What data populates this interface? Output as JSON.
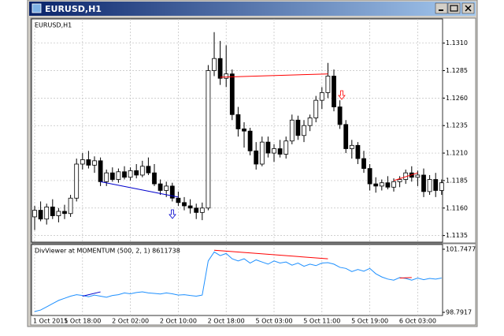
{
  "window": {
    "title": "EURUSD,H1"
  },
  "chart_data": [
    {
      "type": "candlestick",
      "title": "EURUSD,H1",
      "open": [
        1.1152,
        1.1158,
        1.115,
        1.1161,
        1.1153,
        1.1157,
        1.1155,
        1.1169,
        1.12,
        1.1204,
        1.1199,
        1.1203,
        1.1184,
        1.1192,
        1.1186,
        1.1193,
        1.1188,
        1.1194,
        1.119,
        1.1198,
        1.1192,
        1.1182,
        1.1176,
        1.118,
        1.1169,
        1.1165,
        1.1162,
        1.116,
        1.1156,
        1.116,
        1.1285,
        1.1296,
        1.1278,
        1.1282,
        1.1245,
        1.1232,
        1.123,
        1.1212,
        1.12,
        1.122,
        1.121,
        1.1214,
        1.1209,
        1.1221,
        1.124,
        1.1226,
        1.1235,
        1.1242,
        1.1258,
        1.1265,
        1.128,
        1.1252,
        1.1236,
        1.1214,
        1.1217,
        1.1205,
        1.1196,
        1.1182,
        1.118,
        1.1183,
        1.1179,
        1.1184,
        1.1186,
        1.1192,
        1.1188,
        1.119,
        1.1175,
        1.1186,
        1.1176
      ],
      "high": [
        1.1162,
        1.1166,
        1.1164,
        1.1168,
        1.116,
        1.1163,
        1.1172,
        1.1205,
        1.121,
        1.1212,
        1.1207,
        1.1206,
        1.1195,
        1.1197,
        1.1196,
        1.1198,
        1.1197,
        1.12,
        1.1203,
        1.1206,
        1.12,
        1.1186,
        1.1184,
        1.1183,
        1.1175,
        1.117,
        1.1168,
        1.1164,
        1.1165,
        1.129,
        1.132,
        1.1312,
        1.1308,
        1.1286,
        1.1252,
        1.1238,
        1.1233,
        1.122,
        1.1225,
        1.1225,
        1.1218,
        1.1222,
        1.1225,
        1.1245,
        1.1244,
        1.124,
        1.1245,
        1.1262,
        1.127,
        1.1292,
        1.1286,
        1.1258,
        1.124,
        1.1222,
        1.122,
        1.1212,
        1.12,
        1.1188,
        1.1186,
        1.1189,
        1.1187,
        1.1189,
        1.1195,
        1.1198,
        1.1194,
        1.1196,
        1.119,
        1.1192,
        1.1186
      ],
      "low": [
        1.114,
        1.1148,
        1.1145,
        1.115,
        1.1147,
        1.115,
        1.1152,
        1.1166,
        1.1195,
        1.1196,
        1.1192,
        1.118,
        1.118,
        1.1184,
        1.1183,
        1.1186,
        1.1185,
        1.1187,
        1.1188,
        1.119,
        1.118,
        1.1172,
        1.117,
        1.1166,
        1.1162,
        1.1158,
        1.1155,
        1.115,
        1.1149,
        1.1158,
        1.128,
        1.1272,
        1.127,
        1.124,
        1.1225,
        1.1215,
        1.1208,
        1.1195,
        1.1198,
        1.1206,
        1.1202,
        1.1206,
        1.1205,
        1.1218,
        1.1222,
        1.122,
        1.123,
        1.1238,
        1.125,
        1.126,
        1.1248,
        1.1232,
        1.121,
        1.1205,
        1.12,
        1.1192,
        1.1176,
        1.1174,
        1.1176,
        1.1177,
        1.1175,
        1.1179,
        1.1182,
        1.1184,
        1.118,
        1.117,
        1.1172,
        1.117,
        1.1172
      ],
      "close": [
        1.1158,
        1.115,
        1.1161,
        1.1153,
        1.1157,
        1.1155,
        1.1169,
        1.12,
        1.1204,
        1.1199,
        1.1203,
        1.1184,
        1.1192,
        1.1186,
        1.1193,
        1.1188,
        1.1194,
        1.119,
        1.1198,
        1.1192,
        1.1182,
        1.1176,
        1.118,
        1.1169,
        1.1165,
        1.1162,
        1.116,
        1.1156,
        1.116,
        1.1285,
        1.1296,
        1.1278,
        1.1282,
        1.1245,
        1.1232,
        1.123,
        1.1212,
        1.12,
        1.122,
        1.121,
        1.1214,
        1.1209,
        1.1221,
        1.124,
        1.1226,
        1.1235,
        1.1242,
        1.1258,
        1.1265,
        1.128,
        1.1252,
        1.1236,
        1.1214,
        1.1217,
        1.1205,
        1.1196,
        1.1182,
        1.118,
        1.1183,
        1.1179,
        1.1184,
        1.1186,
        1.1192,
        1.1188,
        1.119,
        1.1175,
        1.1186,
        1.1176,
        1.1183
      ],
      "up_color": "#ffffff",
      "down_color": "#000000",
      "ylim": [
        1.1129,
        1.1332
      ],
      "yticks": [
        {
          "value": 1.1135,
          "label": "1.1135"
        },
        {
          "value": 1.116,
          "label": "1.1160"
        },
        {
          "value": 1.1185,
          "label": "1.1185"
        },
        {
          "value": 1.121,
          "label": "1.1210"
        },
        {
          "value": 1.1235,
          "label": "1.1235"
        },
        {
          "value": 1.126,
          "label": "1.1260"
        },
        {
          "value": 1.1285,
          "label": "1.1285"
        },
        {
          "value": 1.131,
          "label": "1.1310"
        }
      ],
      "grid": true,
      "trendlines": [
        {
          "color": "#ff0000",
          "x": [
            31,
            49
          ],
          "y": [
            1.1279,
            1.1282
          ]
        },
        {
          "color": "#0000cd",
          "x": [
            11,
            24
          ],
          "y": [
            1.1184,
            1.117
          ]
        },
        {
          "color": "#ff0000",
          "x": [
            60,
            64
          ],
          "y": [
            1.1185,
            1.1192
          ]
        }
      ]
    },
    {
      "type": "line",
      "title": "DivViewer at MOMENTUM (500, 2, 1) 8611738",
      "categories": [
        "1 Oct 2015",
        null,
        null,
        null,
        null,
        null,
        null,
        null,
        "1 Oct 18:00",
        null,
        null,
        null,
        null,
        null,
        null,
        null,
        "2 Oct 02:00",
        null,
        null,
        null,
        null,
        null,
        null,
        null,
        "2 Oct 10:00",
        null,
        null,
        null,
        null,
        null,
        null,
        null,
        "2 Oct 18:00",
        null,
        null,
        null,
        null,
        null,
        null,
        null,
        "5 Oct 03:00",
        null,
        null,
        null,
        null,
        null,
        null,
        null,
        "5 Oct 11:00",
        null,
        null,
        null,
        null,
        null,
        null,
        null,
        "5 Oct 19:00",
        null,
        null,
        null,
        null,
        null,
        null,
        null,
        "6 Oct 03:00",
        null,
        null,
        null,
        null
      ],
      "values": [
        98.83,
        98.9,
        99.05,
        99.2,
        99.35,
        99.45,
        99.55,
        99.62,
        99.58,
        99.52,
        99.6,
        99.55,
        99.5,
        99.58,
        99.62,
        99.7,
        99.66,
        99.72,
        99.75,
        99.7,
        99.68,
        99.65,
        99.7,
        99.66,
        99.6,
        99.62,
        99.58,
        99.55,
        99.6,
        101.2,
        101.62,
        101.45,
        101.55,
        101.3,
        101.2,
        101.3,
        101.1,
        101.25,
        101.15,
        101.05,
        101.2,
        101.1,
        101.15,
        101.0,
        101.1,
        100.95,
        101.05,
        100.98,
        101.1,
        101.12,
        101.05,
        100.9,
        100.85,
        100.7,
        100.8,
        100.72,
        100.85,
        100.6,
        100.45,
        100.35,
        100.3,
        100.42,
        100.38,
        100.3,
        100.4,
        100.32,
        100.38,
        100.35,
        100.4
      ],
      "color": "#1e90ff",
      "ylim": [
        98.7917,
        101.7477
      ],
      "yticks": [
        98.7917,
        101.7477
      ],
      "grid": true,
      "trendlines": [
        {
          "color": "#ff0000",
          "x": [
            30,
            49
          ],
          "y": [
            101.7,
            101.3
          ]
        },
        {
          "color": "#0000cd",
          "x": [
            8,
            11
          ],
          "y": [
            99.55,
            99.75
          ]
        },
        {
          "color": "#ff0000",
          "x": [
            61,
            63
          ],
          "y": [
            100.4,
            100.42
          ]
        }
      ]
    }
  ]
}
